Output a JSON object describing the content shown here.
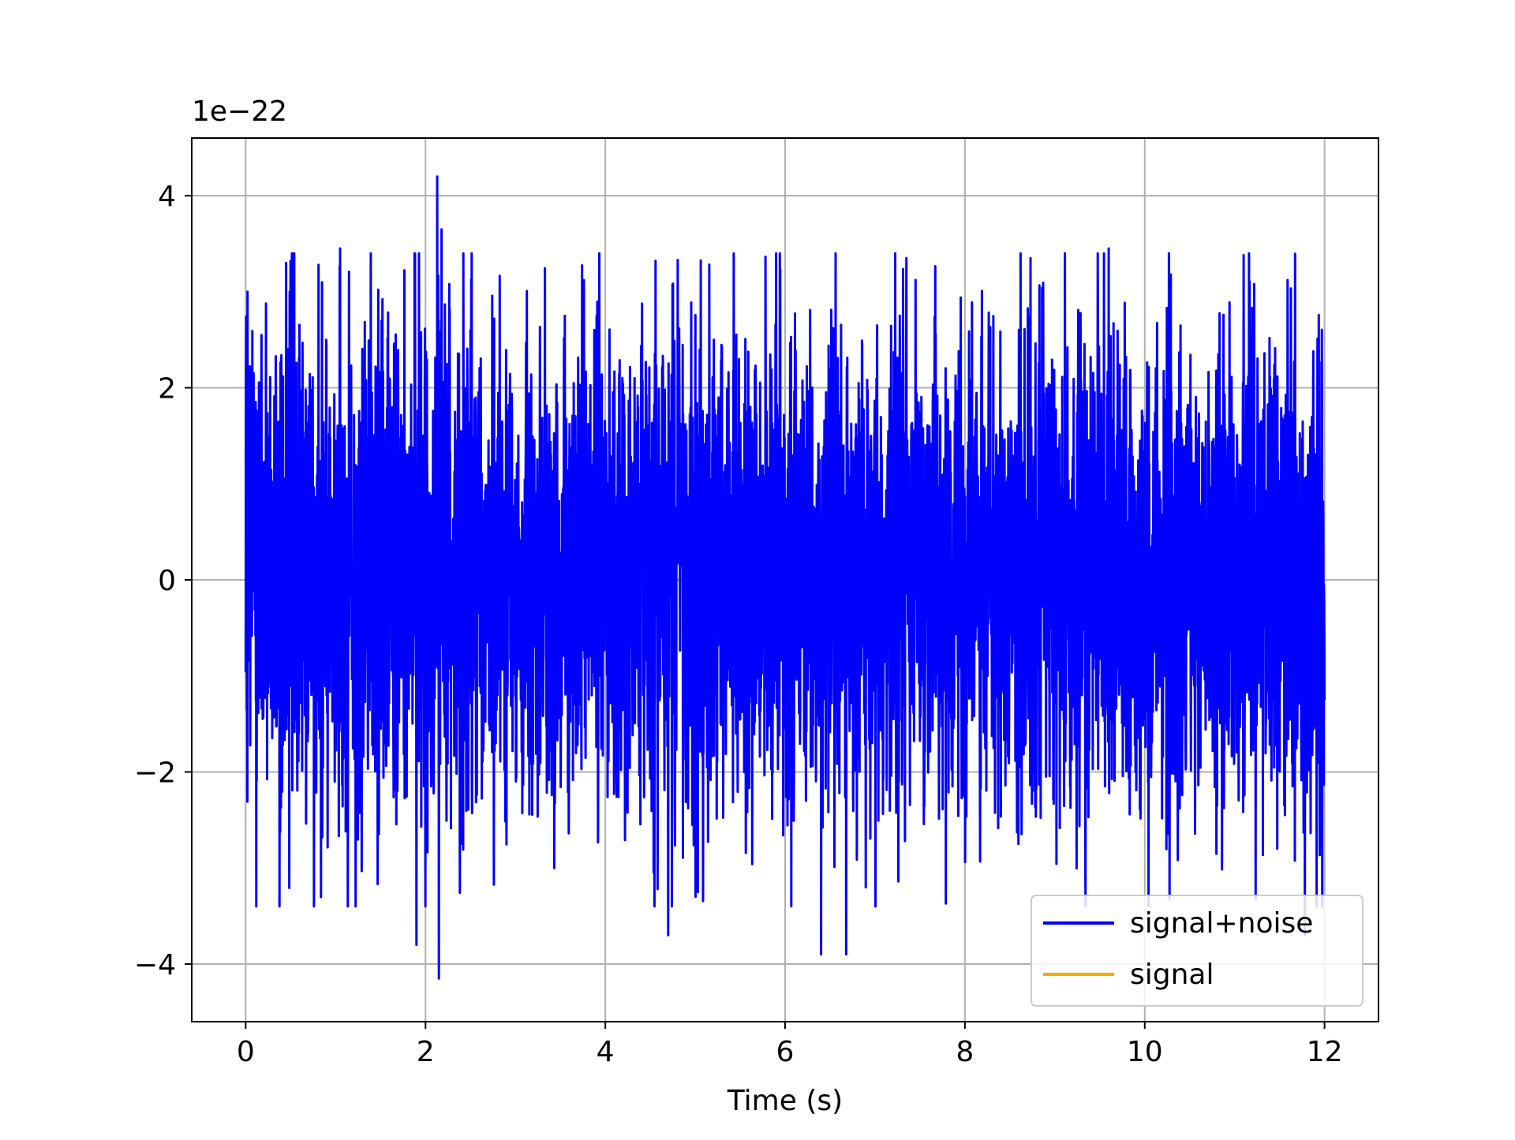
{
  "chart_data": {
    "type": "line",
    "title": "",
    "xlabel": "Time (s)",
    "ylabel": "",
    "y_offset_text": "1e−22",
    "y_scale_multiplier": 1e-22,
    "xlim": [
      -0.6,
      12.6
    ],
    "ylim": [
      -4.6,
      4.6
    ],
    "x_ticks": [
      0,
      2,
      4,
      6,
      8,
      10,
      12
    ],
    "x_tick_labels": [
      "0",
      "2",
      "4",
      "6",
      "8",
      "10",
      "12"
    ],
    "y_ticks": [
      -4,
      -2,
      0,
      2,
      4
    ],
    "y_tick_labels": [
      "−4",
      "−2",
      "0",
      "2",
      "4"
    ],
    "grid": true,
    "legend_position": "lower-right",
    "series": [
      {
        "name": "signal+noise",
        "color": "#0000ff",
        "x_range": [
          0,
          12
        ],
        "envelope_typical": [
          -1.9,
          2.1
        ],
        "peaks": [
          {
            "x": 0.02,
            "y": 3.0
          },
          {
            "x": 0.45,
            "y": 3.3
          },
          {
            "x": 1.05,
            "y": 3.45
          },
          {
            "x": 2.13,
            "y": 4.2
          },
          {
            "x": 2.18,
            "y": 3.65
          },
          {
            "x": 2.15,
            "y": -4.15
          },
          {
            "x": 1.9,
            "y": -3.8
          },
          {
            "x": 4.7,
            "y": -3.7
          },
          {
            "x": 6.4,
            "y": -3.9
          },
          {
            "x": 6.68,
            "y": -3.9
          },
          {
            "x": 7.35,
            "y": 3.35
          },
          {
            "x": 9.6,
            "y": 3.45
          },
          {
            "x": 11.1,
            "y": 3.38
          },
          {
            "x": 11.78,
            "y": -3.7
          }
        ]
      },
      {
        "name": "signal",
        "color": "#ffa500",
        "x_range": [
          0,
          12
        ],
        "values_approx": 0
      }
    ]
  }
}
